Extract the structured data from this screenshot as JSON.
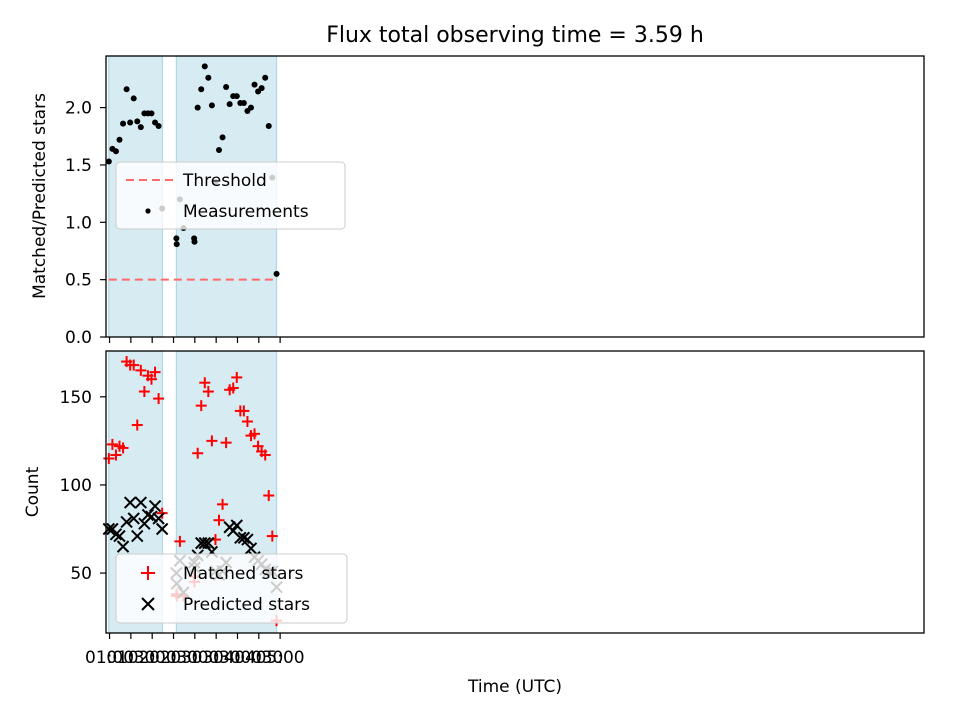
{
  "chart_data": [
    {
      "type": "scatter",
      "title": "Flux total observing time = 3.59 h",
      "xlabel": "",
      "ylabel": "Matched/Predicted stars",
      "xlim": [
        55,
        1206
      ],
      "ylim": [
        0,
        2.45
      ],
      "yticks": [
        0.0,
        0.5,
        1.0,
        1.5,
        2.0
      ],
      "ytick_labels": [
        "0.0",
        "0.5",
        "1.0",
        "1.5",
        "2.0"
      ],
      "xticks": [
        60,
        90,
        120,
        150,
        180,
        210,
        240,
        270,
        300
      ],
      "shaded_intervals": [
        [
          59,
          134.5
        ],
        [
          154,
          295
        ]
      ],
      "shade_color": "#add8e6",
      "legend": {
        "position": "center-left",
        "entries": [
          {
            "label": "Threshold",
            "kind": "dashed-line",
            "color": "#ff6a6a"
          },
          {
            "label": "Measurements",
            "kind": "dot",
            "color": "#000000"
          }
        ]
      },
      "threshold": {
        "name": "Threshold",
        "y": 0.5,
        "x_range": [
          59,
          295
        ],
        "color": "#ff6a6a"
      },
      "series": [
        {
          "name": "Measurements",
          "color": "#000000",
          "points": [
            [
              59,
              1.53
            ],
            [
              64,
              1.64
            ],
            [
              69,
              1.62
            ],
            [
              74,
              1.72
            ],
            [
              79,
              1.86
            ],
            [
              84,
              2.16
            ],
            [
              89,
              1.87
            ],
            [
              94,
              2.08
            ],
            [
              99,
              1.88
            ],
            [
              104,
              1.83
            ],
            [
              109,
              1.95
            ],
            [
              114,
              1.95
            ],
            [
              119,
              1.95
            ],
            [
              124,
              1.87
            ],
            [
              129,
              1.84
            ],
            [
              134,
              1.12
            ],
            [
              154,
              0.86
            ],
            [
              154.5,
              0.81
            ],
            [
              159,
              1.2
            ],
            [
              164,
              0.95
            ],
            [
              179,
              0.86
            ],
            [
              179.5,
              0.83
            ],
            [
              184,
              2.0
            ],
            [
              189,
              2.16
            ],
            [
              194,
              2.36
            ],
            [
              199,
              2.26
            ],
            [
              204,
              2.02
            ],
            [
              209,
              1.35
            ],
            [
              214,
              1.63
            ],
            [
              219,
              1.74
            ],
            [
              224,
              2.18
            ],
            [
              229,
              2.03
            ],
            [
              234,
              2.1
            ],
            [
              239,
              2.1
            ],
            [
              244,
              2.04
            ],
            [
              249,
              2.04
            ],
            [
              254,
              1.97
            ],
            [
              259,
              2.0
            ],
            [
              264,
              2.2
            ],
            [
              269,
              2.14
            ],
            [
              274,
              2.17
            ],
            [
              279,
              2.26
            ],
            [
              284,
              1.84
            ],
            [
              289,
              1.39
            ],
            [
              295,
              0.55
            ]
          ]
        }
      ]
    },
    {
      "type": "scatter",
      "title": "",
      "xlabel": "Time (UTC)",
      "ylabel": "Count",
      "xlim": [
        55,
        1206
      ],
      "ylim": [
        16,
        176
      ],
      "yticks": [
        50,
        100,
        150
      ],
      "ytick_labels": [
        "50",
        "100",
        "150"
      ],
      "xticks": [
        60,
        90,
        120,
        150,
        180,
        210,
        240,
        270,
        300
      ],
      "xtick_labels": [
        "01:00",
        "01:30",
        "02:00",
        "02:30",
        "03:00",
        "03:30",
        "04:00",
        "04:30",
        "05:00"
      ],
      "shaded_intervals": [
        [
          59,
          134.5
        ],
        [
          154,
          295
        ]
      ],
      "shade_color": "#add8e6",
      "legend": {
        "position": "lower-left",
        "entries": [
          {
            "label": "Matched stars",
            "kind": "plus",
            "color": "#ff0000"
          },
          {
            "label": "Predicted stars",
            "kind": "x",
            "color": "#000000"
          }
        ]
      },
      "series": [
        {
          "name": "Matched stars",
          "marker": "plus",
          "color": "#ff0000",
          "points": [
            [
              59,
              115
            ],
            [
              64,
              123
            ],
            [
              69,
              117
            ],
            [
              74,
              122
            ],
            [
              79,
              121
            ],
            [
              84,
              170
            ],
            [
              89,
              168
            ],
            [
              94,
              168
            ],
            [
              99,
              134
            ],
            [
              104,
              165
            ],
            [
              109,
              153
            ],
            [
              114,
              162
            ],
            [
              119,
              160
            ],
            [
              124,
              164
            ],
            [
              129,
              149
            ],
            [
              134,
              84
            ],
            [
              154,
              38
            ],
            [
              154.5,
              37
            ],
            [
              159,
              68
            ],
            [
              164,
              37
            ],
            [
              179,
              48
            ],
            [
              179.5,
              45
            ],
            [
              184,
              118
            ],
            [
              189,
              145
            ],
            [
              194,
              158
            ],
            [
              199,
              153
            ],
            [
              204,
              125
            ],
            [
              209,
              69
            ],
            [
              214,
              80
            ],
            [
              219,
              89
            ],
            [
              224,
              124
            ],
            [
              229,
              154
            ],
            [
              234,
              155
            ],
            [
              239,
              161
            ],
            [
              244,
              142
            ],
            [
              249,
              142
            ],
            [
              254,
              136
            ],
            [
              259,
              128
            ],
            [
              264,
              129
            ],
            [
              269,
              122
            ],
            [
              274,
              119
            ],
            [
              279,
              117
            ],
            [
              284,
              94
            ],
            [
              289,
              71
            ],
            [
              295,
              23
            ]
          ]
        },
        {
          "name": "Predicted stars",
          "marker": "x",
          "color": "#000000",
          "points": [
            [
              59,
              75
            ],
            [
              64,
              75
            ],
            [
              69,
              72
            ],
            [
              74,
              71
            ],
            [
              79,
              65
            ],
            [
              84,
              79
            ],
            [
              89,
              90
            ],
            [
              94,
              81
            ],
            [
              99,
              71
            ],
            [
              104,
              90
            ],
            [
              109,
              78
            ],
            [
              114,
              83
            ],
            [
              119,
              82
            ],
            [
              124,
              88
            ],
            [
              129,
              81
            ],
            [
              134,
              75
            ],
            [
              154,
              50
            ],
            [
              154.5,
              44
            ],
            [
              159,
              57
            ],
            [
              164,
              39
            ],
            [
              179,
              56
            ],
            [
              179.5,
              53
            ],
            [
              184,
              60
            ],
            [
              189,
              67
            ],
            [
              194,
              67
            ],
            [
              199,
              67
            ],
            [
              204,
              62
            ],
            [
              209,
              51
            ],
            [
              214,
              49
            ],
            [
              219,
              51
            ],
            [
              224,
              56
            ],
            [
              229,
              76
            ],
            [
              234,
              74
            ],
            [
              239,
              77
            ],
            [
              244,
              70
            ],
            [
              249,
              70
            ],
            [
              254,
              69
            ],
            [
              259,
              64
            ],
            [
              264,
              59
            ],
            [
              269,
              57
            ],
            [
              274,
              55
            ],
            [
              279,
              52
            ],
            [
              284,
              51
            ],
            [
              289,
              51
            ],
            [
              295,
              42
            ]
          ]
        }
      ]
    }
  ]
}
